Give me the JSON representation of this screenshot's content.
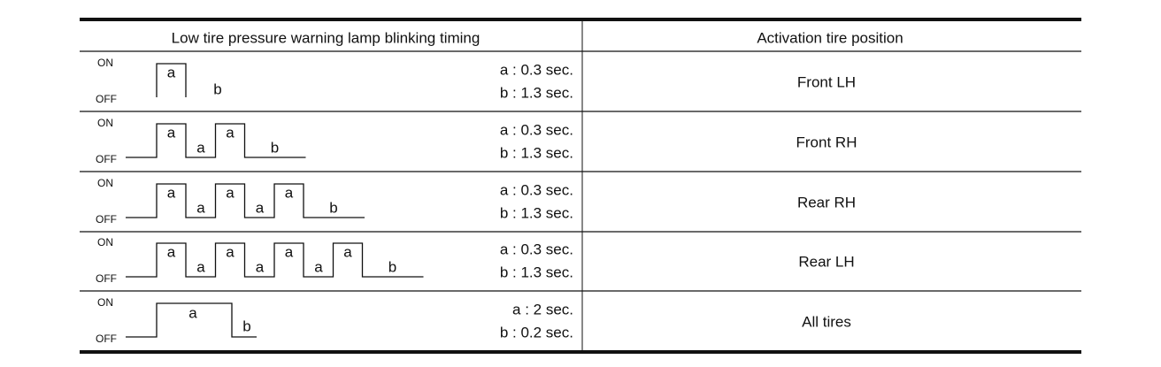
{
  "header": {
    "col1": "Low tire pressure warning lamp blinking timing",
    "col2": "Activation tire position"
  },
  "rows": [
    {
      "on": "ON",
      "off": "OFF",
      "wave_labels": [
        "a",
        "b"
      ],
      "timing": [
        "a : 0.3 sec.",
        "b : 1.3 sec."
      ],
      "position": "Front LH"
    },
    {
      "on": "ON",
      "off": "OFF",
      "wave_labels": [
        "a",
        "a",
        "a",
        "b"
      ],
      "timing": [
        "a : 0.3 sec.",
        "b : 1.3 sec."
      ],
      "position": "Front RH"
    },
    {
      "on": "ON",
      "off": "OFF",
      "wave_labels": [
        "a",
        "a",
        "a",
        "a",
        "a",
        "b"
      ],
      "timing": [
        "a : 0.3 sec.",
        "b : 1.3 sec."
      ],
      "position": "Rear RH"
    },
    {
      "on": "ON",
      "off": "OFF",
      "wave_labels": [
        "a",
        "a",
        "a",
        "a",
        "a",
        "a",
        "a",
        "b"
      ],
      "timing": [
        "a : 0.3 sec.",
        "b : 1.3 sec."
      ],
      "position": "Rear LH"
    },
    {
      "on": "ON",
      "off": "OFF",
      "wave_labels": [
        "a",
        "b"
      ],
      "timing": [
        "a : 2 sec.",
        "b : 0.2 sec."
      ],
      "position": "All tires"
    }
  ]
}
